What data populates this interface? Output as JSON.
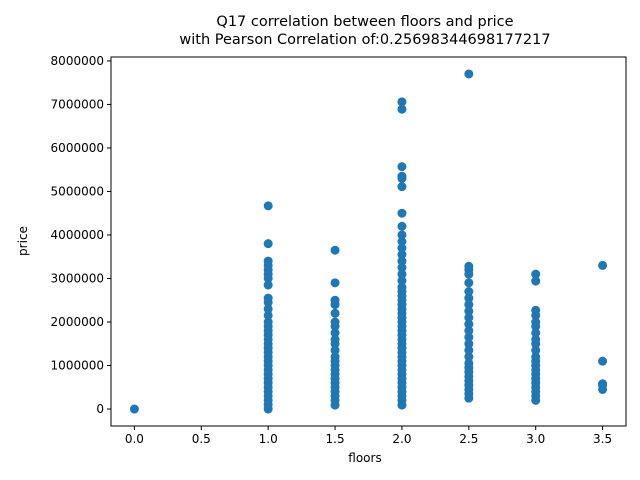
{
  "chart_data": {
    "type": "scatter",
    "title": "Q17 correlation between floors and price",
    "subtitle": "with Pearson Correlation of:0.25698344698177217",
    "xlabel": "floors",
    "ylabel": "price",
    "xlim": [
      -0.175,
      3.675
    ],
    "ylim": [
      -390000,
      8090000
    ],
    "xticks": [
      0.0,
      0.5,
      1.0,
      1.5,
      2.0,
      2.5,
      3.0,
      3.5
    ],
    "xtick_labels": [
      "0.0",
      "0.5",
      "1.0",
      "1.5",
      "2.0",
      "2.5",
      "3.0",
      "3.5"
    ],
    "yticks": [
      0,
      1000000,
      2000000,
      3000000,
      4000000,
      5000000,
      6000000,
      7000000,
      8000000
    ],
    "ytick_labels": [
      "0",
      "1000000",
      "2000000",
      "3000000",
      "4000000",
      "5000000",
      "6000000",
      "7000000",
      "8000000"
    ],
    "grid": false,
    "marker_color": "#1f77b4",
    "series": [
      {
        "points": [
          [
            0.0,
            0
          ],
          [
            1.0,
            0
          ],
          [
            1.0,
            100000
          ],
          [
            1.0,
            200000
          ],
          [
            1.0,
            300000
          ],
          [
            1.0,
            400000
          ],
          [
            1.0,
            500000
          ],
          [
            1.0,
            600000
          ],
          [
            1.0,
            700000
          ],
          [
            1.0,
            800000
          ],
          [
            1.0,
            900000
          ],
          [
            1.0,
            1000000
          ],
          [
            1.0,
            1100000
          ],
          [
            1.0,
            1200000
          ],
          [
            1.0,
            1300000
          ],
          [
            1.0,
            1400000
          ],
          [
            1.0,
            1500000
          ],
          [
            1.0,
            1600000
          ],
          [
            1.0,
            1700000
          ],
          [
            1.0,
            1800000
          ],
          [
            1.0,
            1900000
          ],
          [
            1.0,
            2000000
          ],
          [
            1.0,
            2150000
          ],
          [
            1.0,
            2300000
          ],
          [
            1.0,
            2450000
          ],
          [
            1.0,
            2550000
          ],
          [
            1.0,
            2850000
          ],
          [
            1.0,
            3000000
          ],
          [
            1.0,
            3100000
          ],
          [
            1.0,
            3200000
          ],
          [
            1.0,
            3300000
          ],
          [
            1.0,
            3400000
          ],
          [
            1.0,
            3800000
          ],
          [
            1.0,
            4670000
          ],
          [
            1.5,
            90000
          ],
          [
            1.5,
            200000
          ],
          [
            1.5,
            300000
          ],
          [
            1.5,
            400000
          ],
          [
            1.5,
            500000
          ],
          [
            1.5,
            600000
          ],
          [
            1.5,
            700000
          ],
          [
            1.5,
            800000
          ],
          [
            1.5,
            900000
          ],
          [
            1.5,
            1000000
          ],
          [
            1.5,
            1100000
          ],
          [
            1.5,
            1200000
          ],
          [
            1.5,
            1350000
          ],
          [
            1.5,
            1500000
          ],
          [
            1.5,
            1600000
          ],
          [
            1.5,
            1750000
          ],
          [
            1.5,
            1900000
          ],
          [
            1.5,
            2000000
          ],
          [
            1.5,
            2200000
          ],
          [
            1.5,
            2400000
          ],
          [
            1.5,
            2500000
          ],
          [
            1.5,
            2900000
          ],
          [
            1.5,
            3650000
          ],
          [
            2.0,
            90000
          ],
          [
            2.0,
            200000
          ],
          [
            2.0,
            300000
          ],
          [
            2.0,
            400000
          ],
          [
            2.0,
            500000
          ],
          [
            2.0,
            600000
          ],
          [
            2.0,
            700000
          ],
          [
            2.0,
            800000
          ],
          [
            2.0,
            900000
          ],
          [
            2.0,
            1000000
          ],
          [
            2.0,
            1100000
          ],
          [
            2.0,
            1200000
          ],
          [
            2.0,
            1300000
          ],
          [
            2.0,
            1400000
          ],
          [
            2.0,
            1500000
          ],
          [
            2.0,
            1600000
          ],
          [
            2.0,
            1700000
          ],
          [
            2.0,
            1800000
          ],
          [
            2.0,
            1900000
          ],
          [
            2.0,
            2000000
          ],
          [
            2.0,
            2100000
          ],
          [
            2.0,
            2200000
          ],
          [
            2.0,
            2300000
          ],
          [
            2.0,
            2400000
          ],
          [
            2.0,
            2500000
          ],
          [
            2.0,
            2600000
          ],
          [
            2.0,
            2700000
          ],
          [
            2.0,
            2800000
          ],
          [
            2.0,
            2950000
          ],
          [
            2.0,
            3100000
          ],
          [
            2.0,
            3250000
          ],
          [
            2.0,
            3400000
          ],
          [
            2.0,
            3550000
          ],
          [
            2.0,
            3700000
          ],
          [
            2.0,
            3850000
          ],
          [
            2.0,
            4000000
          ],
          [
            2.0,
            4200000
          ],
          [
            2.0,
            4500000
          ],
          [
            2.0,
            5110000
          ],
          [
            2.0,
            5300000
          ],
          [
            2.0,
            5350000
          ],
          [
            2.0,
            5570000
          ],
          [
            2.0,
            6890000
          ],
          [
            2.0,
            7060000
          ],
          [
            2.5,
            250000
          ],
          [
            2.5,
            350000
          ],
          [
            2.5,
            450000
          ],
          [
            2.5,
            550000
          ],
          [
            2.5,
            650000
          ],
          [
            2.5,
            750000
          ],
          [
            2.5,
            850000
          ],
          [
            2.5,
            950000
          ],
          [
            2.5,
            1050000
          ],
          [
            2.5,
            1200000
          ],
          [
            2.5,
            1350000
          ],
          [
            2.5,
            1500000
          ],
          [
            2.5,
            1650000
          ],
          [
            2.5,
            1800000
          ],
          [
            2.5,
            1950000
          ],
          [
            2.5,
            2100000
          ],
          [
            2.5,
            2250000
          ],
          [
            2.5,
            2400000
          ],
          [
            2.5,
            2550000
          ],
          [
            2.5,
            2700000
          ],
          [
            2.5,
            2900000
          ],
          [
            2.5,
            3100000
          ],
          [
            2.5,
            3200000
          ],
          [
            2.5,
            3280000
          ],
          [
            2.5,
            7700000
          ],
          [
            3.0,
            200000
          ],
          [
            3.0,
            300000
          ],
          [
            3.0,
            400000
          ],
          [
            3.0,
            500000
          ],
          [
            3.0,
            600000
          ],
          [
            3.0,
            700000
          ],
          [
            3.0,
            800000
          ],
          [
            3.0,
            900000
          ],
          [
            3.0,
            1000000
          ],
          [
            3.0,
            1100000
          ],
          [
            3.0,
            1200000
          ],
          [
            3.0,
            1350000
          ],
          [
            3.0,
            1500000
          ],
          [
            3.0,
            1600000
          ],
          [
            3.0,
            1750000
          ],
          [
            3.0,
            1900000
          ],
          [
            3.0,
            2000000
          ],
          [
            3.0,
            2150000
          ],
          [
            3.0,
            2270000
          ],
          [
            3.0,
            2940000
          ],
          [
            3.0,
            3100000
          ],
          [
            3.5,
            450000
          ],
          [
            3.5,
            550000
          ],
          [
            3.5,
            580000
          ],
          [
            3.5,
            1100000
          ],
          [
            3.5,
            3300000
          ]
        ]
      }
    ]
  }
}
